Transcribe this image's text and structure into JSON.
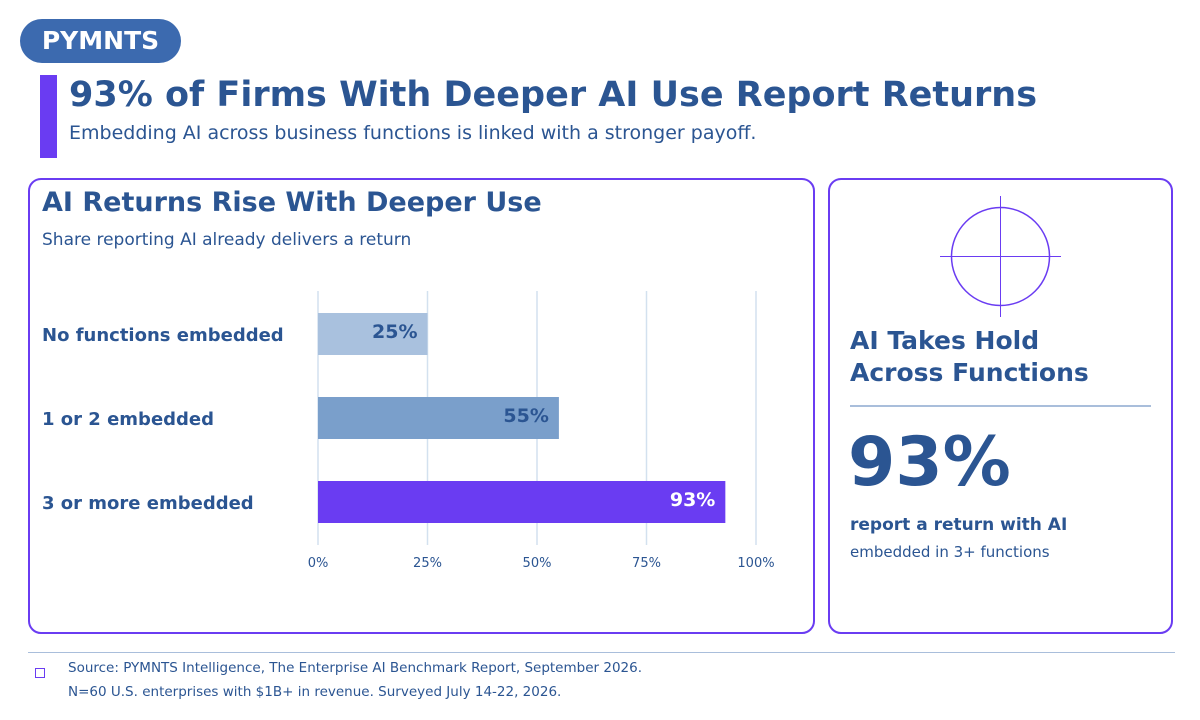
{
  "brand": {
    "logo_text": "PYMNTS",
    "logo_color": "#3c6aaf",
    "accent": "#6a3cf2",
    "text_color": "#2b5592"
  },
  "header": {
    "title": "93% of Firms With Deeper AI Use Report Returns",
    "subtitle": "Embedding AI across business functions is linked with a stronger payoff."
  },
  "chart_panel": {
    "title": "AI Returns Rise With Deeper Use",
    "subtitle": "Share reporting AI already delivers a return"
  },
  "chart_data": {
    "type": "bar",
    "orientation": "horizontal",
    "title": "AI Returns Rise With Deeper Use",
    "subtitle": "Share reporting AI already delivers a return",
    "categories": [
      "No functions embedded",
      "1 or 2 embedded",
      "3 or more embedded"
    ],
    "values": [
      25,
      55,
      93
    ],
    "value_labels": [
      "25%",
      "55%",
      "93%"
    ],
    "bar_colors": [
      "#a9c1de",
      "#7a9fcb",
      "#6a3cf2"
    ],
    "label_colors": [
      "#2b5592",
      "#2b5592",
      "#ffffff"
    ],
    "xlim": [
      0,
      100
    ],
    "xticks": [
      0,
      25,
      50,
      75,
      100
    ],
    "xtick_labels": [
      "0%",
      "25%",
      "50%",
      "75%",
      "100%"
    ],
    "grid": true,
    "xlabel": "",
    "ylabel": ""
  },
  "kpi": {
    "icon": "target-icon",
    "heading_line1": "AI Takes Hold",
    "heading_line2": "Across Functions",
    "value": "93%",
    "line1": "report a return with AI",
    "line2": "embedded in 3+ functions"
  },
  "footer": {
    "source": "Source: PYMNTS Intelligence, The Enterprise AI Benchmark Report, September 2026.",
    "note": "N=60 U.S. enterprises with $1B+ in revenue. Surveyed July 14-22, 2026."
  }
}
